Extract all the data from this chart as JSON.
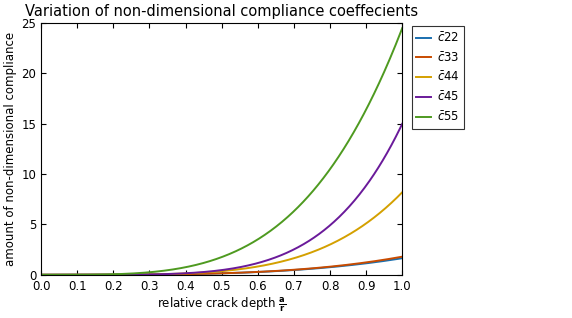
{
  "title": "Variation of non-dimensional compliance coeffecients",
  "ylabel": "amount of non-dimensional compliance",
  "xlim": [
    0,
    1
  ],
  "ylim": [
    0,
    25
  ],
  "xticks": [
    0,
    0.1,
    0.2,
    0.3,
    0.4,
    0.5,
    0.6,
    0.7,
    0.8,
    0.9,
    1.0
  ],
  "yticks": [
    0,
    5,
    10,
    15,
    20,
    25
  ],
  "series": [
    {
      "color": "#1a6faf",
      "coeff": 1.65,
      "exponent": 3.5
    },
    {
      "color": "#c84b00",
      "coeff": 1.8,
      "exponent": 3.6
    },
    {
      "color": "#d4a000",
      "coeff": 8.2,
      "exponent": 4.5
    },
    {
      "color": "#6a1a9a",
      "coeff": 15.0,
      "exponent": 5.0
    },
    {
      "color": "#4e9a20",
      "coeff": 24.5,
      "exponent": 3.8
    }
  ],
  "legend_labels": [
    "$\\bar{c}$22",
    "$\\bar{c}$33",
    "$\\bar{c}$44",
    "$\\bar{c}$45",
    "$\\bar{c}$55"
  ],
  "background_color": "#ffffff",
  "legend_fontsize": 8.5,
  "title_fontsize": 10.5,
  "tick_fontsize": 8.5,
  "label_fontsize": 8.5,
  "linewidth": 1.4
}
